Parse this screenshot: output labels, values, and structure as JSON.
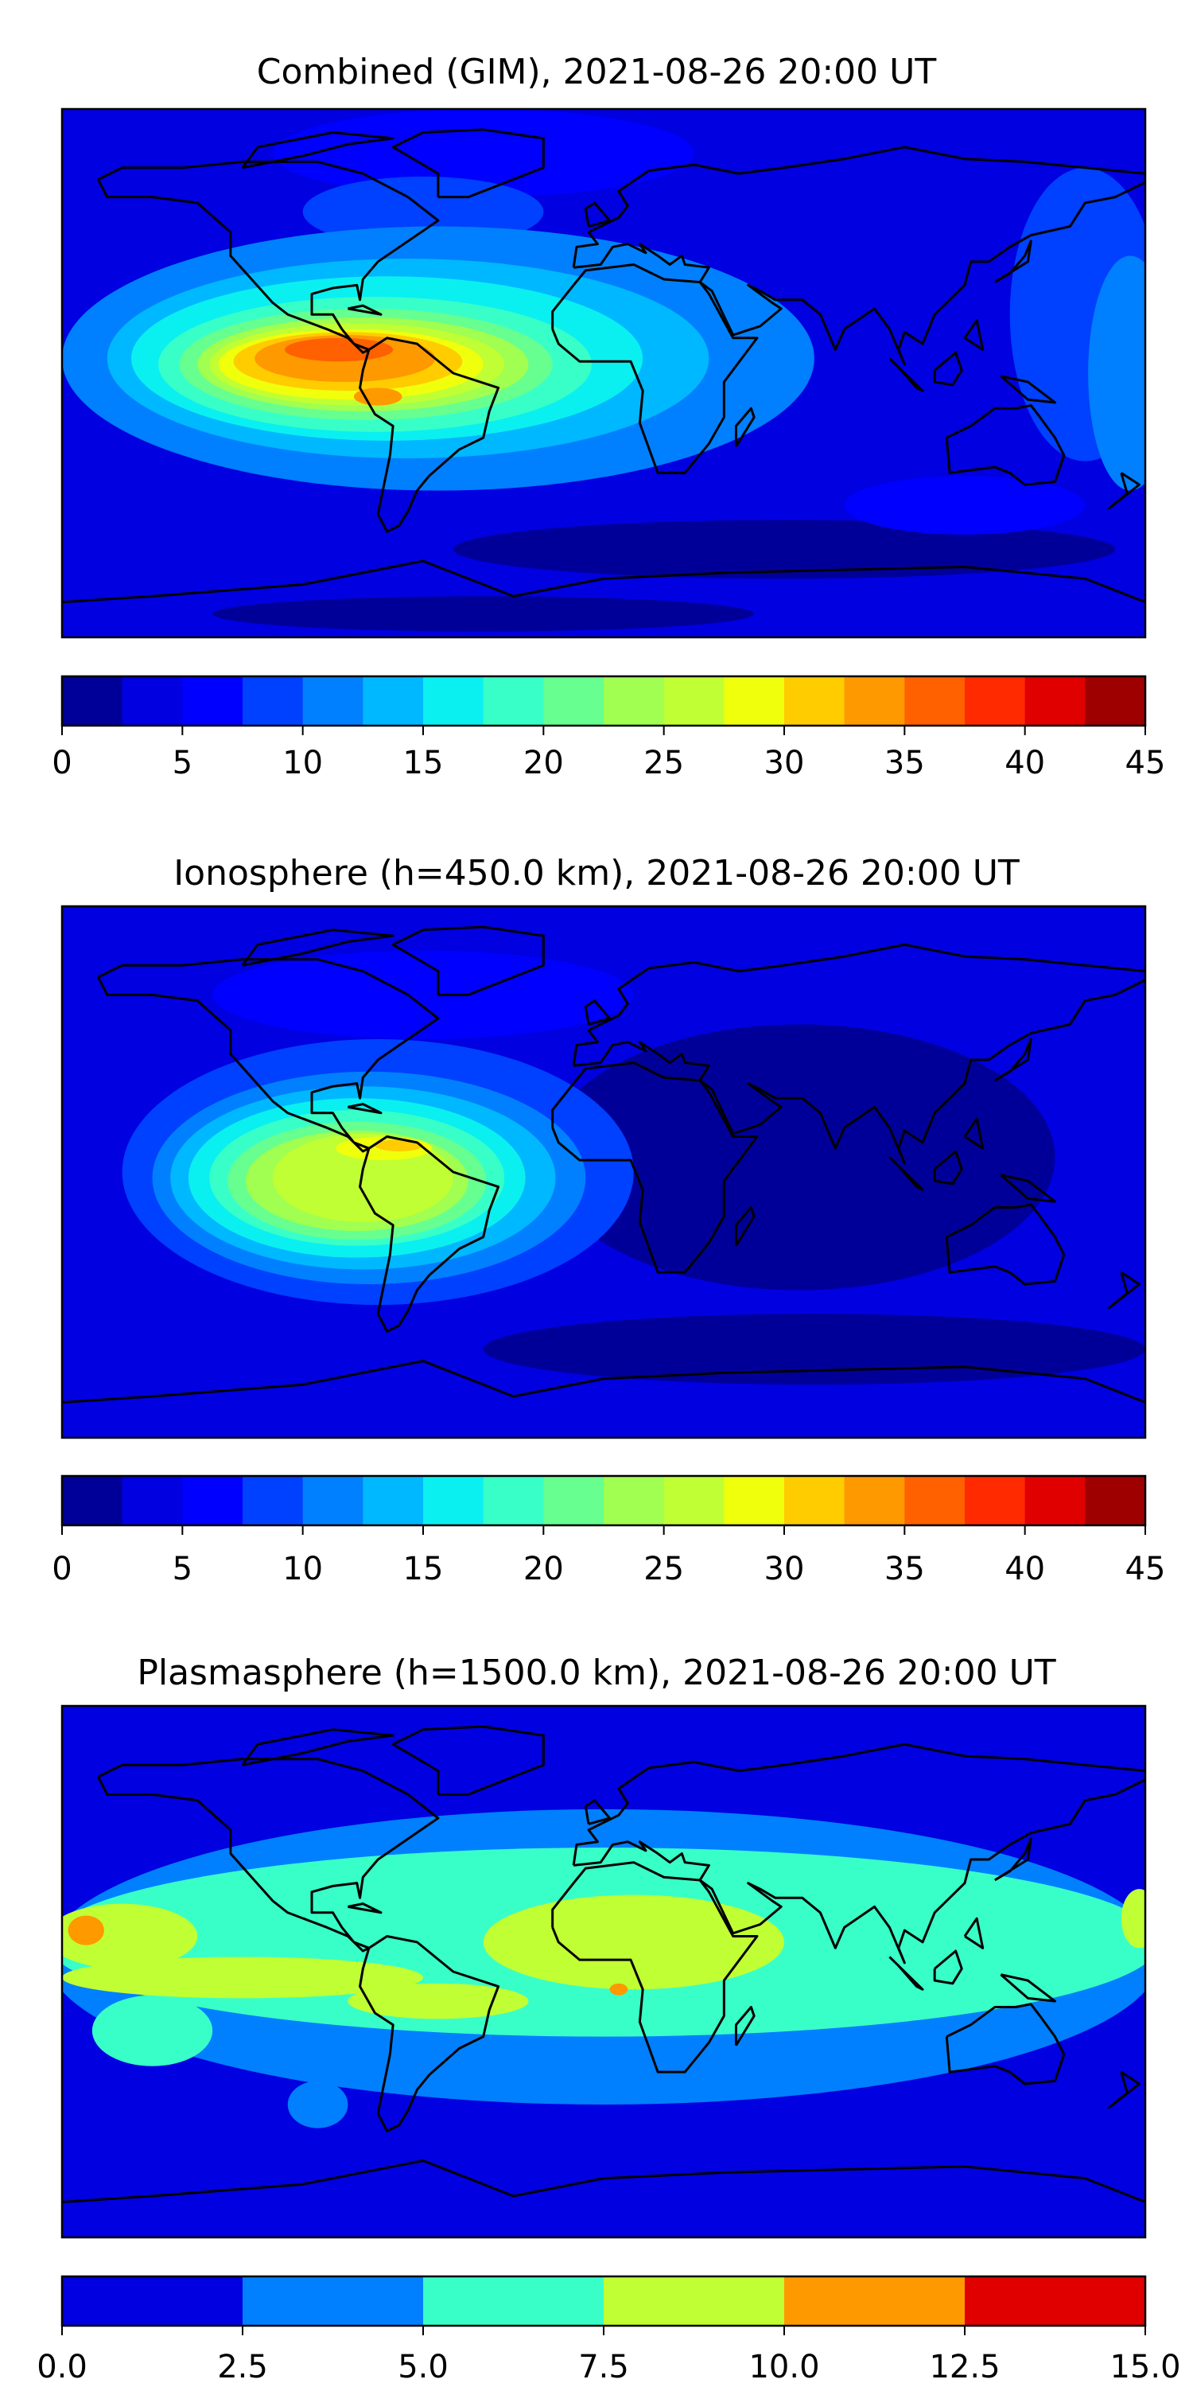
{
  "chart_data": [
    {
      "type": "heatmap",
      "title": "Combined (GIM), 2021-08-26 20:00 UT",
      "colorbar": {
        "levels": [
          0,
          2.5,
          5,
          7.5,
          10,
          12.5,
          15,
          17.5,
          20,
          22.5,
          25,
          27.5,
          30,
          32.5,
          35,
          37.5,
          40,
          42.5,
          45
        ],
        "ticks": [
          "0",
          "5",
          "10",
          "15",
          "20",
          "25",
          "30",
          "35",
          "40",
          "45"
        ],
        "tick_values": [
          0,
          5,
          10,
          15,
          20,
          25,
          30,
          35,
          40,
          45
        ],
        "range": [
          0,
          45
        ],
        "colors": [
          "#000099",
          "#0000e0",
          "#0000ff",
          "#0040ff",
          "#0080ff",
          "#00b8ff",
          "#0af0f0",
          "#38ffc8",
          "#66ff90",
          "#a0ff50",
          "#c0ff33",
          "#f0ff0c",
          "#ffcc00",
          "#ff9900",
          "#ff6000",
          "#ff2a00",
          "#e00000",
          "#9e0000"
        ]
      },
      "peak_region": "northern South America / Caribbean",
      "peak_level": [
        35,
        37.5
      ]
    },
    {
      "type": "heatmap",
      "title": "Ionosphere  (h=450.0 km), 2021-08-26 20:00 UT",
      "colorbar": {
        "levels": [
          0,
          2.5,
          5,
          7.5,
          10,
          12.5,
          15,
          17.5,
          20,
          22.5,
          25,
          27.5,
          30,
          32.5,
          35,
          37.5,
          40,
          42.5,
          45
        ],
        "ticks": [
          "0",
          "5",
          "10",
          "15",
          "20",
          "25",
          "30",
          "35",
          "40",
          "45"
        ],
        "tick_values": [
          0,
          5,
          10,
          15,
          20,
          25,
          30,
          35,
          40,
          45
        ],
        "range": [
          0,
          45
        ],
        "colors": [
          "#000099",
          "#0000e0",
          "#0000ff",
          "#0040ff",
          "#0080ff",
          "#00b8ff",
          "#0af0f0",
          "#38ffc8",
          "#66ff90",
          "#a0ff50",
          "#c0ff33",
          "#f0ff0c",
          "#ffcc00",
          "#ff9900",
          "#ff6000",
          "#ff2a00",
          "#e00000",
          "#9e0000"
        ]
      },
      "peak_region": "northern South America",
      "peak_level": [
        30,
        32.5
      ]
    },
    {
      "type": "heatmap",
      "title": "Plasmasphere (h=1500.0 km), 2021-08-26 20:00 UT",
      "colorbar": {
        "levels": [
          0,
          2.5,
          5,
          7.5,
          10,
          12.5,
          15
        ],
        "ticks": [
          "0.0",
          "2.5",
          "5.0",
          "7.5",
          "10.0",
          "12.5",
          "15.0"
        ],
        "tick_values": [
          0,
          2.5,
          5,
          7.5,
          10,
          12.5,
          15
        ],
        "range": [
          0,
          15
        ],
        "colors": [
          "#0000e0",
          "#0080ff",
          "#38ffc8",
          "#c0ff33",
          "#ff9900",
          "#e00000"
        ]
      },
      "peak_region": "central Pacific / central Africa",
      "peak_level": [
        10,
        12.5
      ]
    }
  ]
}
